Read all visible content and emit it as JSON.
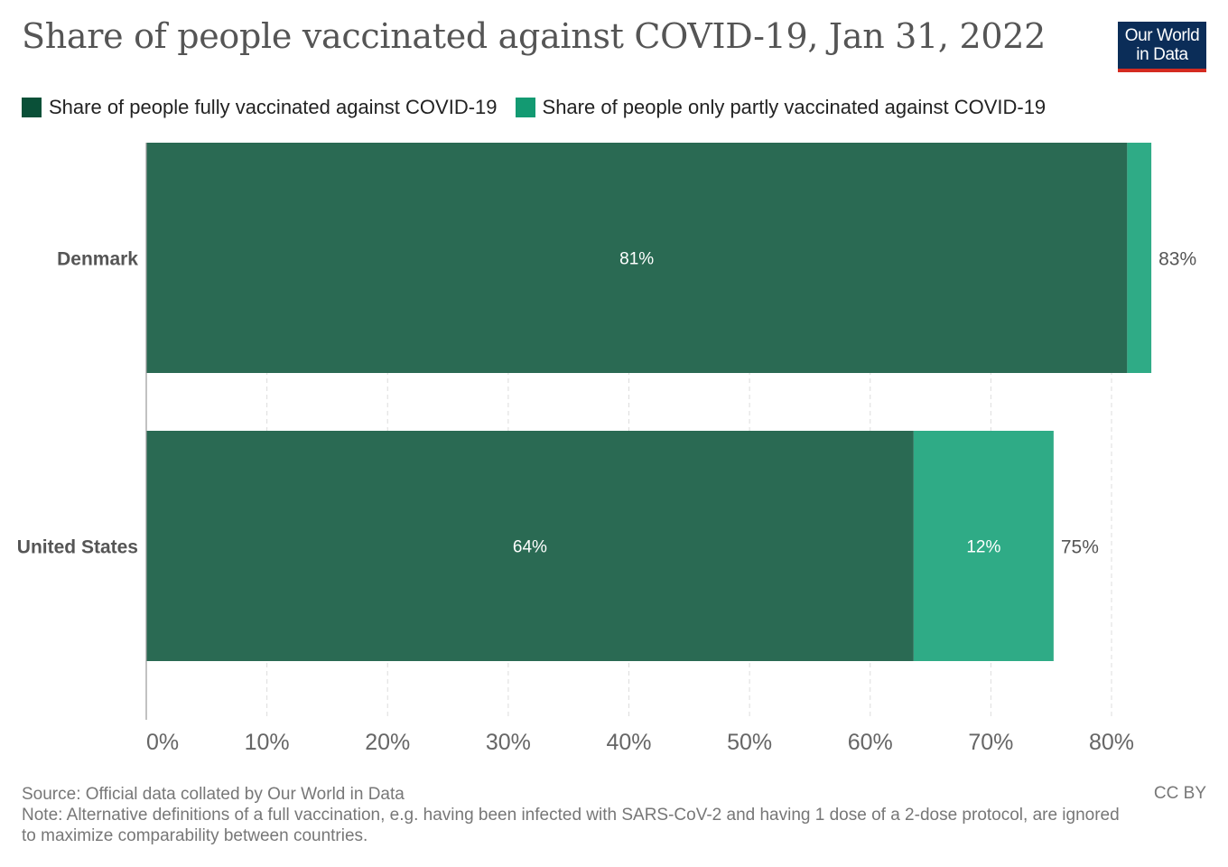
{
  "header": {
    "title": "Share of people vaccinated against COVID-19, Jan 31, 2022",
    "logo_line1": "Our World",
    "logo_line2": "in Data"
  },
  "colors": {
    "fully": "#2a6a53",
    "partly": "#2fab86",
    "legend_fully": "#0a5038",
    "legend_partly": "#139a72",
    "grid": "#dddddd",
    "axis": "#999999",
    "tick_text": "#666666"
  },
  "chart_data": {
    "type": "bar",
    "orientation": "horizontal",
    "stacked": true,
    "title": "Share of people vaccinated against COVID-19, Jan 31, 2022",
    "categories": [
      "Denmark",
      "United States"
    ],
    "series": [
      {
        "name": "Share of people fully vaccinated against COVID-19",
        "values": [
          81.3,
          63.6
        ],
        "labels": [
          "81%",
          "64%"
        ]
      },
      {
        "name": "Share of people only partly vaccinated against COVID-19",
        "values": [
          2.0,
          11.6
        ],
        "labels": [
          "",
          "12%"
        ]
      }
    ],
    "totals": [
      "83%",
      "75%"
    ],
    "xlim": [
      0,
      80
    ],
    "xticks": [
      0,
      10,
      20,
      30,
      40,
      50,
      60,
      70,
      80
    ],
    "xtick_labels": [
      "0%",
      "10%",
      "20%",
      "30%",
      "40%",
      "50%",
      "60%",
      "70%",
      "80%"
    ],
    "grid": true,
    "legend_position": "top-left"
  },
  "footer": {
    "source": "Source: Official data collated by Our World in Data",
    "note": "Note: Alternative definitions of a full vaccination, e.g. having been infected with SARS-CoV-2 and having 1 dose of a 2-dose protocol, are ignored to maximize comparability between countries.",
    "license": "CC BY"
  }
}
